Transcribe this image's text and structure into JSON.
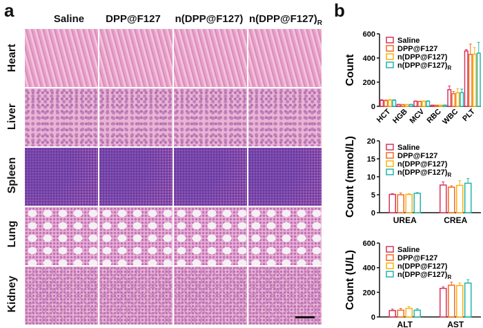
{
  "panel_a": {
    "letter": "a",
    "columns": [
      "Saline",
      "DPP@F127",
      "n(DPP@F127)"
    ],
    "column_last": {
      "text": "n(DPP@F127)",
      "subscript": "R"
    },
    "rows": [
      "Heart",
      "Liver",
      "Spleen",
      "Lung",
      "Kidney"
    ]
  },
  "panel_b": {
    "letter": "b"
  },
  "colors": {
    "Saline": "#d6335a",
    "DPP@F127": "#f26a21",
    "n(DPP@F127)": "#f9b20f",
    "n(DPP@F127)R": "#1fb5ad"
  },
  "chart_data": [
    {
      "type": "bar",
      "ylabel": "Count",
      "ylim": [
        0,
        600
      ],
      "yticks": [
        0,
        200,
        400,
        600
      ],
      "categories": [
        "HCT",
        "HGB",
        "MCV",
        "RBC",
        "WBC",
        "PLT"
      ],
      "series": [
        {
          "name": "Saline",
          "values": [
            50,
            15,
            42,
            9,
            138,
            458
          ],
          "errors": [
            5,
            2,
            3,
            1,
            30,
            12
          ]
        },
        {
          "name": "DPP@F127",
          "values": [
            48,
            14,
            40,
            9,
            105,
            430
          ],
          "errors": [
            5,
            2,
            3,
            1,
            18,
            85
          ]
        },
        {
          "name": "n(DPP@F127)",
          "values": [
            52,
            14,
            42,
            9,
            112,
            432
          ],
          "errors": [
            5,
            2,
            3,
            1,
            35,
            55
          ]
        },
        {
          "name": "n(DPP@F127)",
          "subscript": "R",
          "values": [
            50,
            15,
            43,
            10,
            113,
            440
          ],
          "errors": [
            5,
            2,
            3,
            1,
            30,
            90
          ]
        }
      ]
    },
    {
      "type": "bar",
      "ylabel": "Count (mmol/L)",
      "ylim": [
        0,
        20
      ],
      "yticks": [
        0,
        5,
        10,
        15,
        20
      ],
      "categories": [
        "UREA",
        "CREA"
      ],
      "series": [
        {
          "name": "Saline",
          "values": [
            5.1,
            7.7
          ],
          "errors": [
            0.2,
            0.9
          ]
        },
        {
          "name": "DPP@F127",
          "values": [
            5.0,
            7.1
          ],
          "errors": [
            0.5,
            0.4
          ]
        },
        {
          "name": "n(DPP@F127)",
          "values": [
            5.1,
            7.6
          ],
          "errors": [
            0.2,
            1.3
          ]
        },
        {
          "name": "n(DPP@F127)",
          "subscript": "R",
          "values": [
            5.4,
            8.2
          ],
          "errors": [
            0.2,
            1.3
          ]
        }
      ]
    },
    {
      "type": "bar",
      "ylabel": "Count (U/L)",
      "ylim": [
        0,
        600
      ],
      "yticks": [
        0,
        200,
        400,
        600
      ],
      "categories": [
        "ALT",
        "AST"
      ],
      "series": [
        {
          "name": "Saline",
          "values": [
            52,
            232
          ],
          "errors": [
            12,
            12
          ]
        },
        {
          "name": "DPP@F127",
          "values": [
            55,
            258
          ],
          "errors": [
            15,
            25
          ]
        },
        {
          "name": "n(DPP@F127)",
          "values": [
            70,
            255
          ],
          "errors": [
            15,
            20
          ]
        },
        {
          "name": "n(DPP@F127)",
          "subscript": "R",
          "values": [
            55,
            275
          ],
          "errors": [
            12,
            28
          ]
        }
      ]
    }
  ]
}
